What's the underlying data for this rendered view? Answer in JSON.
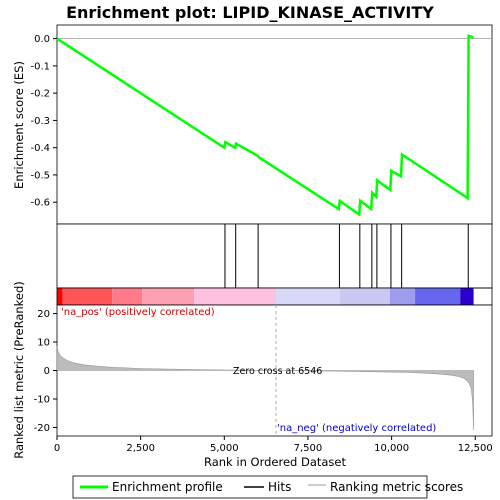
{
  "chart_data": {
    "type": "line",
    "title": "Enrichment plot: LIPID_KINASE_ACTIVITY",
    "xlabel": "Rank in Ordered Dataset",
    "ylabel_top": "Enrichment score (ES)",
    "ylabel_bottom": "Ranked list metric (PreRanked)",
    "xlim": [
      0,
      13000
    ],
    "x_ticks": [
      0,
      2500,
      5000,
      7500,
      10000,
      12500
    ],
    "x_tick_labels": [
      "0",
      "2,500",
      "5,000",
      "7,500",
      "10,000",
      "12,500"
    ],
    "es_ylim": [
      -0.68,
      0.05
    ],
    "es_y_ticks": [
      0.0,
      -0.1,
      -0.2,
      -0.3,
      -0.4,
      -0.5,
      -0.6
    ],
    "es_y_tick_labels": [
      "0.0",
      "-0.1",
      "-0.2",
      "-0.3",
      "-0.4",
      "-0.5",
      "-0.6"
    ],
    "metric_ylim": [
      -23,
      23
    ],
    "metric_y_ticks": [
      20,
      10,
      0,
      -10,
      -20
    ],
    "metric_y_tick_labels": [
      "20",
      "10",
      "0",
      "-10",
      "-20"
    ],
    "series": [
      {
        "name": "Enrichment profile",
        "color": "#00ff00",
        "x": [
          0,
          5000,
          5030,
          5320,
          5350,
          6000,
          6030,
          8420,
          8450,
          9030,
          9060,
          9390,
          9420,
          9540,
          9570,
          9960,
          9990,
          10280,
          10310,
          12270,
          12300,
          12450
        ],
        "y": [
          0.0,
          -0.4,
          -0.38,
          -0.4,
          -0.385,
          -0.43,
          -0.435,
          -0.625,
          -0.595,
          -0.645,
          -0.595,
          -0.625,
          -0.565,
          -0.58,
          -0.52,
          -0.555,
          -0.485,
          -0.505,
          -0.425,
          -0.585,
          0.01,
          0.005
        ]
      }
    ],
    "hits": [
      5020,
      5340,
      6010,
      8440,
      9050,
      9410,
      9560,
      9980,
      10300,
      12290
    ],
    "zero_cross": 6546,
    "zero_cross_label": "Zero cross at 6546",
    "pos_label": "'na_pos' (positively correlated)",
    "neg_label": "'na_neg' (negatively correlated)",
    "legend": [
      "Enrichment profile",
      "Hits",
      "Ranking metric scores"
    ],
    "colors": {
      "es_line": "#00ff00",
      "hits": "#000000",
      "metric_fill": "#bbbbbb",
      "zero_line": "#aaaaaa",
      "pos_text": "#cc0000",
      "neg_text": "#0000cc"
    },
    "colorbar": [
      {
        "from": 0,
        "to": 170,
        "color": "#ff0000"
      },
      {
        "from": 170,
        "to": 1650,
        "color": "#ff5555"
      },
      {
        "from": 1650,
        "to": 2550,
        "color": "#ff7b8a"
      },
      {
        "from": 2550,
        "to": 4100,
        "color": "#ff9fb3"
      },
      {
        "from": 4100,
        "to": 6546,
        "color": "#ffc1e0"
      },
      {
        "from": 6546,
        "to": 8450,
        "color": "#d8d8f8"
      },
      {
        "from": 8450,
        "to": 9950,
        "color": "#c8c8f0"
      },
      {
        "from": 9950,
        "to": 10700,
        "color": "#9d9df0"
      },
      {
        "from": 10700,
        "to": 12050,
        "color": "#6666ee"
      },
      {
        "from": 12050,
        "to": 12450,
        "color": "#2a00cc"
      }
    ],
    "metric_curve": {
      "x": [
        0,
        40,
        100,
        200,
        350,
        500,
        800,
        1200,
        1700,
        2500,
        3500,
        4500,
        5500,
        6546,
        7500,
        8500,
        9500,
        10500,
        11000,
        11500,
        11800,
        12000,
        12150,
        12250,
        12320,
        12380,
        12420,
        12450
      ],
      "y": [
        8.5,
        6.5,
        5.2,
        4.2,
        3.3,
        2.7,
        2.0,
        1.5,
        1.1,
        0.7,
        0.45,
        0.25,
        0.1,
        0.0,
        -0.1,
        -0.25,
        -0.45,
        -0.7,
        -0.95,
        -1.3,
        -1.7,
        -2.1,
        -2.7,
        -3.5,
        -4.6,
        -6.5,
        -11.0,
        -21.0
      ]
    }
  }
}
